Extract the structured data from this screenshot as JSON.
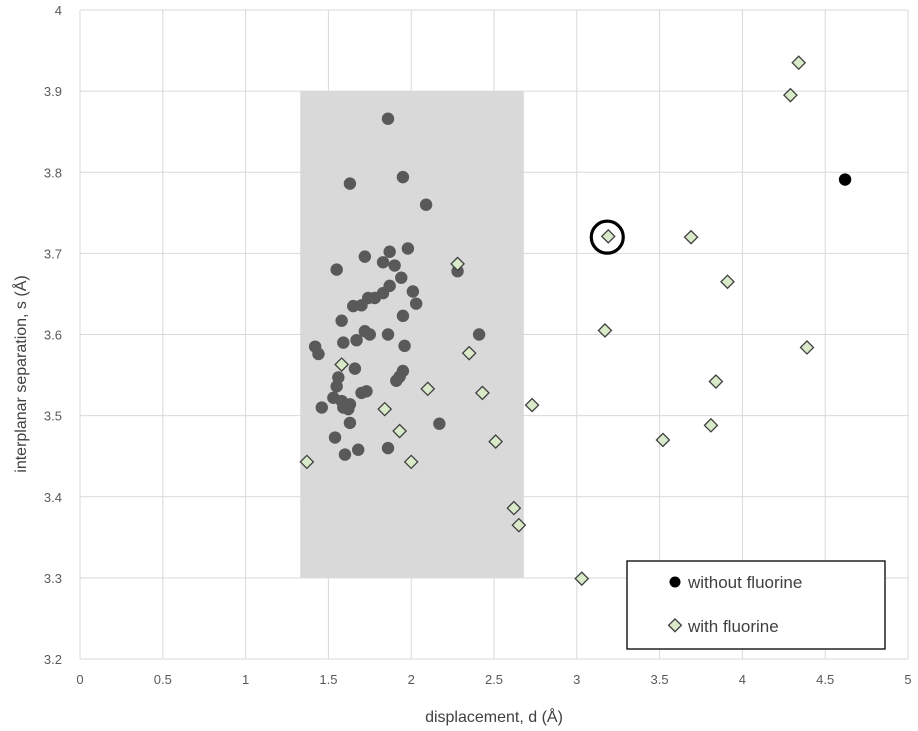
{
  "chart_data": {
    "type": "scatter",
    "title": "",
    "xlabel": "displacement, d (Å)",
    "ylabel": "interplanar separation, s (Å)",
    "xlim": [
      0,
      5
    ],
    "ylim": [
      3.2,
      4
    ],
    "x_ticks": [
      "0",
      "0.5",
      "1",
      "1.5",
      "2",
      "2.5",
      "3",
      "3.5",
      "4",
      "4.5",
      "5"
    ],
    "y_ticks": [
      "3.2",
      "3.3",
      "3.4",
      "3.5",
      "3.6",
      "3.7",
      "3.8",
      "3.9",
      "4"
    ],
    "grid": true,
    "legend_position": "bottom-right",
    "shaded_region": {
      "x": [
        1.33,
        2.68
      ],
      "y": [
        3.3,
        3.9
      ],
      "color": "#d9d9d9"
    },
    "highlight_circle": {
      "x": 3.19,
      "y": 3.72
    },
    "series": [
      {
        "name": "without fluorine",
        "marker": "circle",
        "color": "#595959",
        "points": [
          [
            1.86,
            3.866
          ],
          [
            1.95,
            3.794
          ],
          [
            1.63,
            3.786
          ],
          [
            2.09,
            3.76
          ],
          [
            1.98,
            3.706
          ],
          [
            1.87,
            3.702
          ],
          [
            1.72,
            3.696
          ],
          [
            1.83,
            3.689
          ],
          [
            1.9,
            3.685
          ],
          [
            1.55,
            3.68
          ],
          [
            2.28,
            3.678
          ],
          [
            1.94,
            3.67
          ],
          [
            1.87,
            3.66
          ],
          [
            2.01,
            3.653
          ],
          [
            1.83,
            3.651
          ],
          [
            1.78,
            3.645
          ],
          [
            1.74,
            3.645
          ],
          [
            2.03,
            3.638
          ],
          [
            1.7,
            3.636
          ],
          [
            1.65,
            3.635
          ],
          [
            1.95,
            3.623
          ],
          [
            1.58,
            3.617
          ],
          [
            1.72,
            3.604
          ],
          [
            1.75,
            3.6
          ],
          [
            1.86,
            3.6
          ],
          [
            2.41,
            3.6
          ],
          [
            1.67,
            3.593
          ],
          [
            1.59,
            3.59
          ],
          [
            1.96,
            3.586
          ],
          [
            1.42,
            3.585
          ],
          [
            1.44,
            3.576
          ],
          [
            1.66,
            3.558
          ],
          [
            1.95,
            3.555
          ],
          [
            1.93,
            3.548
          ],
          [
            1.56,
            3.547
          ],
          [
            1.91,
            3.543
          ],
          [
            1.55,
            3.536
          ],
          [
            1.73,
            3.53
          ],
          [
            1.7,
            3.528
          ],
          [
            1.53,
            3.522
          ],
          [
            1.58,
            3.518
          ],
          [
            1.63,
            3.514
          ],
          [
            1.59,
            3.51
          ],
          [
            1.46,
            3.51
          ],
          [
            1.62,
            3.508
          ],
          [
            1.63,
            3.491
          ],
          [
            2.17,
            3.49
          ],
          [
            1.54,
            3.473
          ],
          [
            1.86,
            3.46
          ],
          [
            1.68,
            3.458
          ],
          [
            1.6,
            3.452
          ],
          [
            4.62,
            3.791
          ]
        ]
      },
      {
        "name": "with fluorine",
        "marker": "diamond",
        "color": "#d8eac8",
        "points": [
          [
            4.34,
            3.935
          ],
          [
            4.29,
            3.895
          ],
          [
            3.19,
            3.721
          ],
          [
            3.69,
            3.72
          ],
          [
            2.28,
            3.687
          ],
          [
            3.91,
            3.665
          ],
          [
            3.17,
            3.605
          ],
          [
            4.39,
            3.584
          ],
          [
            2.35,
            3.577
          ],
          [
            1.58,
            3.563
          ],
          [
            3.84,
            3.542
          ],
          [
            2.1,
            3.533
          ],
          [
            2.43,
            3.528
          ],
          [
            2.73,
            3.513
          ],
          [
            1.84,
            3.508
          ],
          [
            3.81,
            3.488
          ],
          [
            1.93,
            3.481
          ],
          [
            3.52,
            3.47
          ],
          [
            2.51,
            3.468
          ],
          [
            1.37,
            3.443
          ],
          [
            2.0,
            3.443
          ],
          [
            2.62,
            3.386
          ],
          [
            2.65,
            3.365
          ],
          [
            3.03,
            3.299
          ]
        ]
      }
    ]
  }
}
